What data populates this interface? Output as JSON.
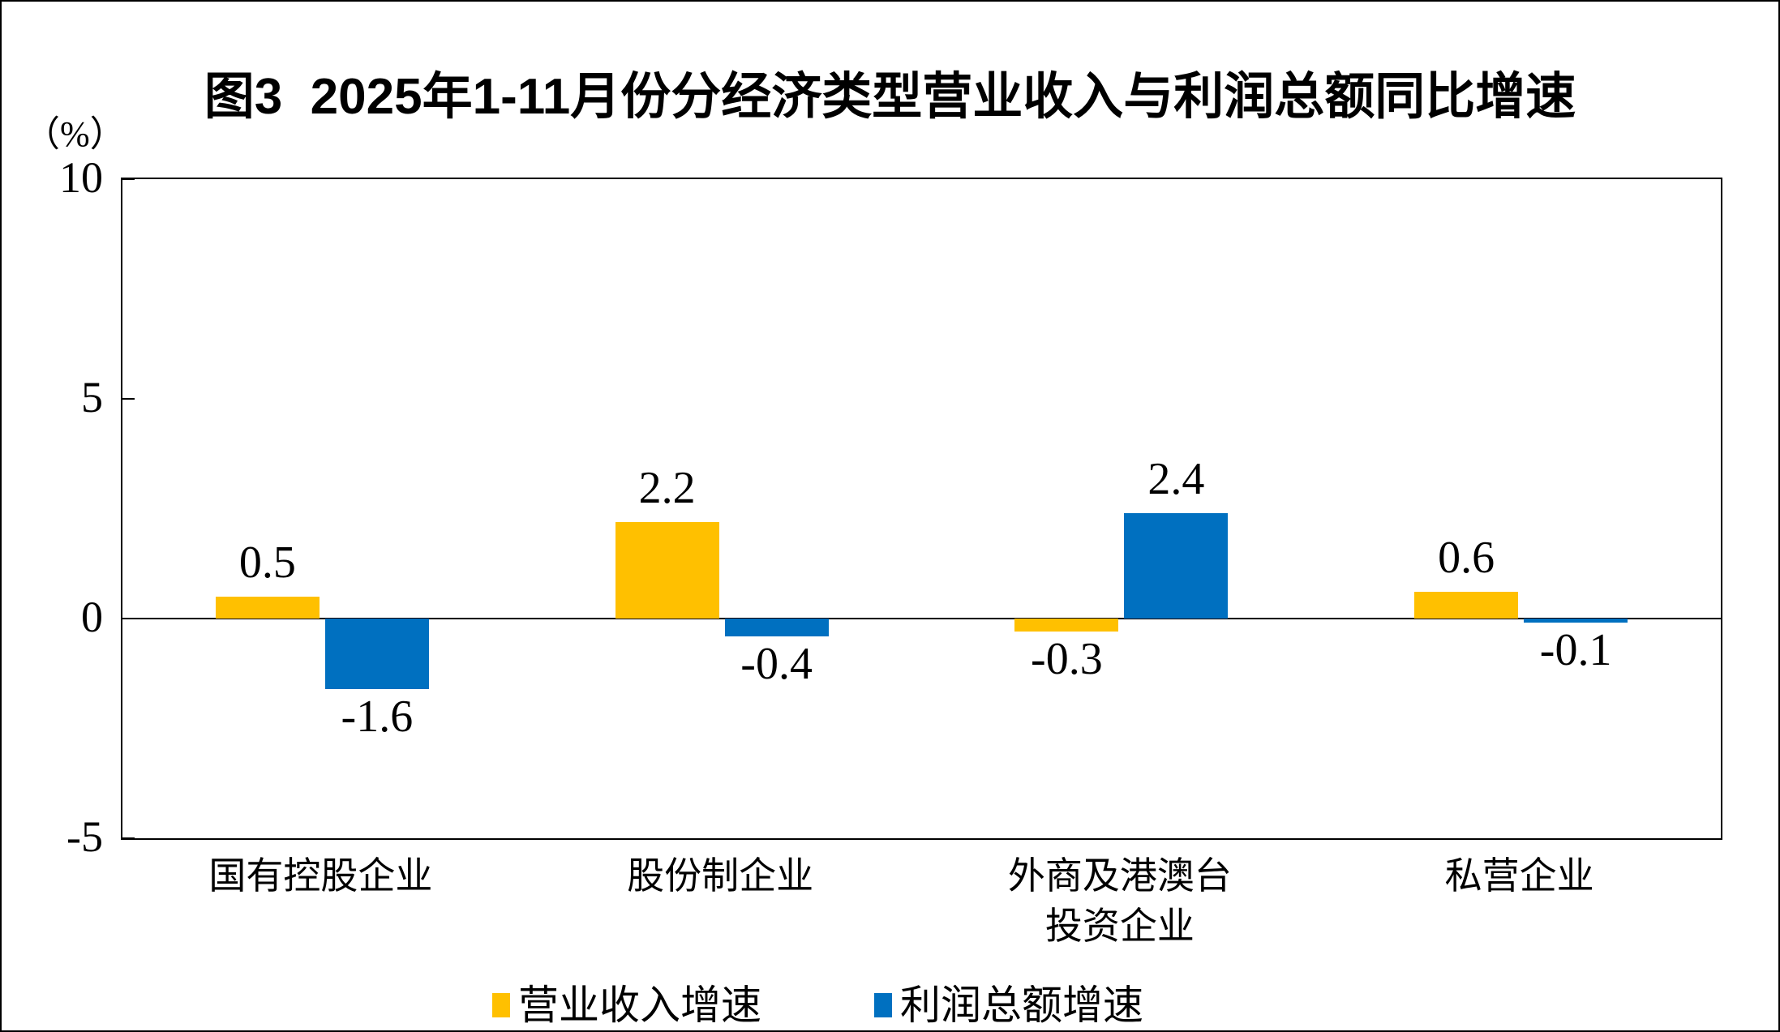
{
  "figure": {
    "title": "图3  2025年1-11月份分经济类型营业收入与利润总额同比增速",
    "axis_unit_label": "（%）"
  },
  "chart_data": {
    "type": "bar",
    "title": "图3 2025年1-11月份分经济类型营业收入与利润总额同比增速",
    "ylabel": "（%）",
    "categories": [
      "国有控股企业",
      "股份制企业",
      "外商及港澳台投资企业",
      "私营企业"
    ],
    "category_display": [
      [
        "国有控股企业"
      ],
      [
        "股份制企业"
      ],
      [
        "外商及港澳台",
        "投资企业"
      ],
      [
        "私营企业"
      ]
    ],
    "series": [
      {
        "name": "营业收入增速",
        "color": "#FFC000",
        "values": [
          0.5,
          2.2,
          -0.3,
          0.6
        ]
      },
      {
        "name": "利润总额增速",
        "color": "#0070C0",
        "values": [
          -1.6,
          -0.4,
          2.4,
          -0.1
        ]
      }
    ],
    "data_labels": true,
    "ylim": [
      -5,
      10
    ],
    "yticks": [
      10,
      5,
      0,
      -5
    ],
    "grid": false,
    "legend_position": "bottom",
    "colors": {
      "axis": "#000000",
      "background": "#FFFFFF"
    }
  }
}
